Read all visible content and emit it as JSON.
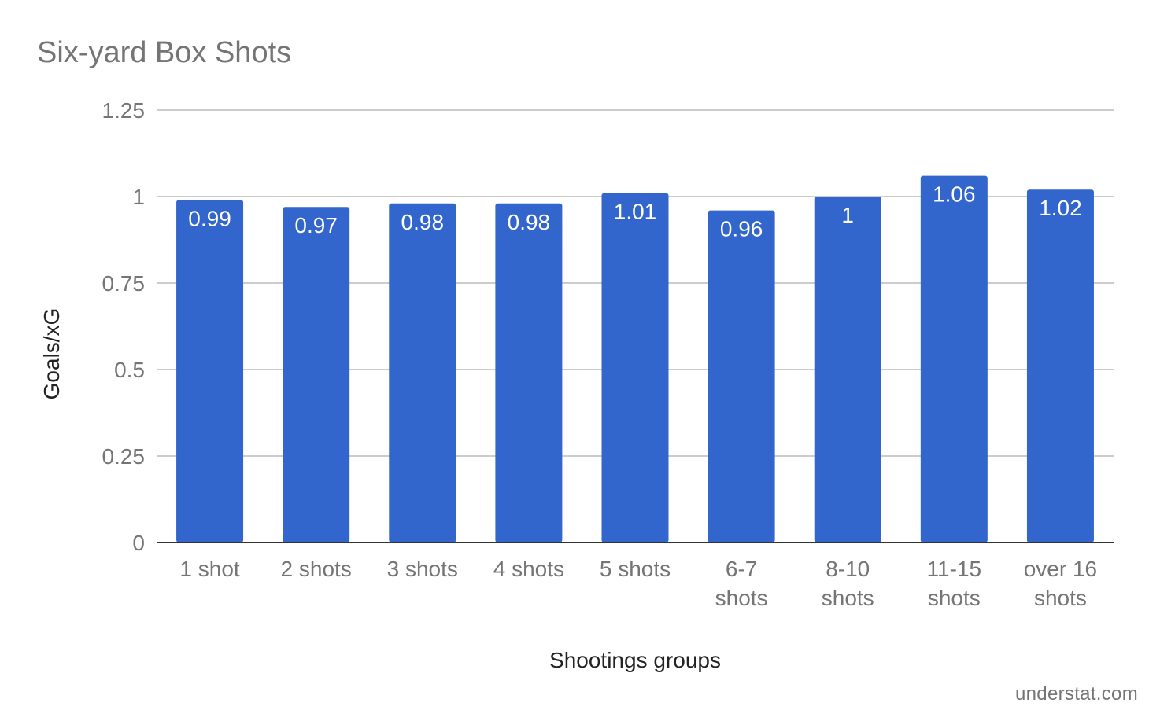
{
  "title": "Six-yard Box Shots",
  "watermark": "understat.com",
  "colors": {
    "bar": "#3366cc",
    "grid": "#cccccc",
    "baseline": "#333333",
    "tick_text": "#757575",
    "axis_title_text": "#222222"
  },
  "chart_data": {
    "type": "bar",
    "title": "Six-yard Box Shots",
    "xlabel": "Shootings groups",
    "ylabel": "Goals/xG",
    "categories": [
      [
        "1 shot"
      ],
      [
        "2 shots"
      ],
      [
        "3 shots"
      ],
      [
        "4 shots"
      ],
      [
        "5 shots"
      ],
      [
        "6-7",
        "shots"
      ],
      [
        "8-10",
        "shots"
      ],
      [
        "11-15",
        "shots"
      ],
      [
        "over 16",
        "shots"
      ]
    ],
    "values": [
      0.99,
      0.97,
      0.98,
      0.98,
      1.01,
      0.96,
      1,
      1.06,
      1.02
    ],
    "data_labels": [
      "0.99",
      "0.97",
      "0.98",
      "0.98",
      "1.01",
      "0.96",
      "1",
      "1.06",
      "1.02"
    ],
    "ylim": [
      0,
      1.25
    ],
    "yticks": [
      0,
      0.25,
      0.5,
      0.75,
      1,
      1.25
    ],
    "ytick_labels": [
      "0",
      "0.25",
      "0.5",
      "0.75",
      "1",
      "1.25"
    ],
    "grid": true,
    "legend": "none"
  }
}
